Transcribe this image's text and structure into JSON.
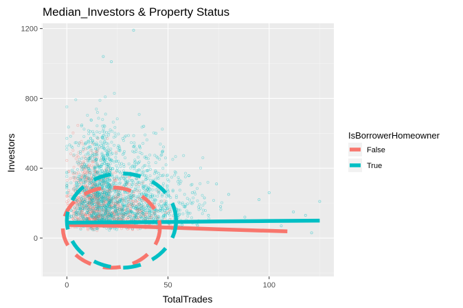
{
  "chart_data": {
    "type": "scatter",
    "title": "Median_Investors & Property Status",
    "xlabel": "TotalTrades",
    "ylabel": "Investors",
    "xlim": [
      -12,
      132
    ],
    "ylim": [
      -220,
      1230
    ],
    "x_ticks": [
      0,
      50,
      100
    ],
    "y_ticks": [
      0,
      400,
      800,
      1200
    ],
    "x_minor": [
      -12.5,
      25,
      75,
      125
    ],
    "y_minor": [
      -200,
      200,
      600,
      1000
    ],
    "grid": true,
    "legend": {
      "title": "IsBorrowerHomeowner",
      "placement": "right",
      "entries": [
        "False",
        "True"
      ]
    },
    "series": [
      {
        "name": "False",
        "color": "#F8766D",
        "scatter_summary": {
          "x_range": [
            0,
            60
          ],
          "y_range": [
            0,
            900
          ],
          "bulk_y": [
            0,
            400
          ]
        },
        "median_line": {
          "x": [
            0,
            25,
            50,
            75,
            109
          ],
          "y": [
            75,
            70,
            60,
            50,
            38
          ]
        },
        "ellipse": {
          "cx": 22,
          "cy": 60,
          "rx": 24,
          "ry": 230
        }
      },
      {
        "name": "True",
        "color": "#00BFC4",
        "scatter_summary": {
          "x_range": [
            0,
            125
          ],
          "y_range": [
            0,
            1190
          ],
          "bulk_y": [
            0,
            600
          ]
        },
        "median_line": {
          "x": [
            0,
            25,
            50,
            75,
            100,
            125
          ],
          "y": [
            88,
            90,
            92,
            95,
            98,
            100
          ]
        },
        "ellipse": {
          "cx": 27,
          "cy": 100,
          "rx": 27,
          "ry": 270
        }
      }
    ]
  }
}
